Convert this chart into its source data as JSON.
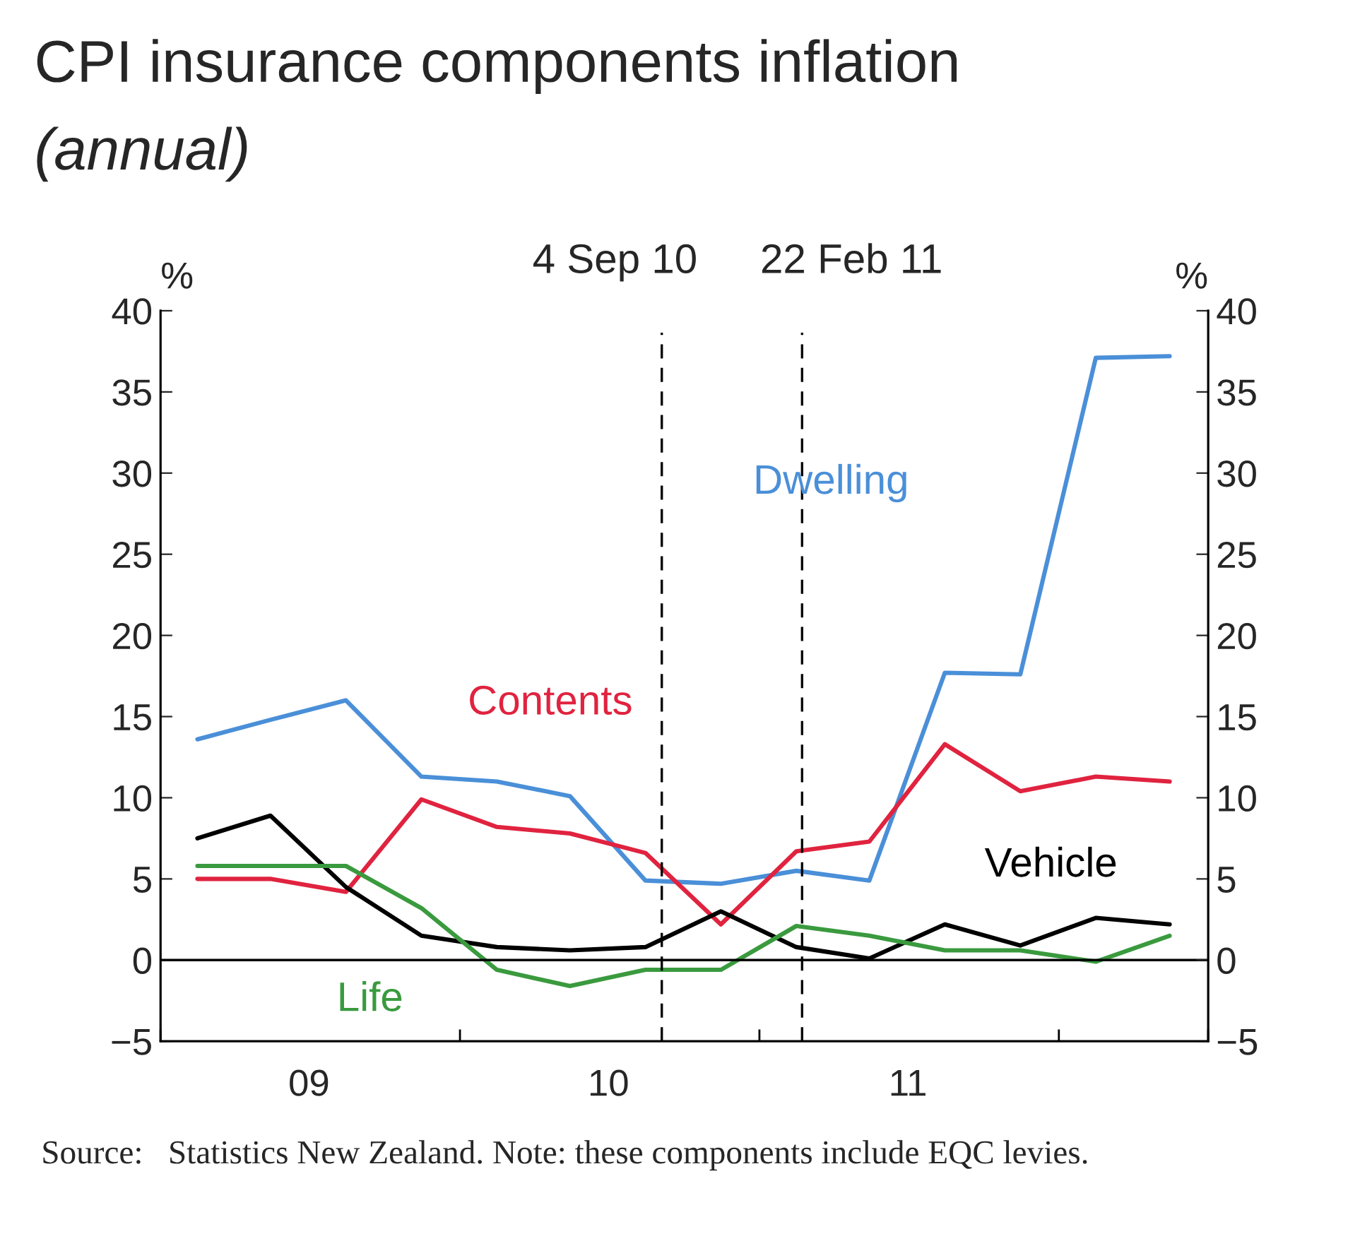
{
  "chart_data": {
    "type": "line",
    "title": "CPI insurance components inflation",
    "subtitle": "(annual)",
    "ylabel": "%",
    "y2label": "%",
    "x": [
      "2009-02-15",
      "2009-05-15",
      "2009-08-15",
      "2009-11-15",
      "2010-02-15",
      "2010-05-15",
      "2010-08-15",
      "2010-11-15",
      "2011-02-15",
      "2011-05-15",
      "2011-08-15",
      "2011-11-15",
      "2012-02-15",
      "2012-05-15"
    ],
    "series": [
      {
        "name": "Dwelling",
        "color": "#4a8fd8",
        "values": [
          13.6,
          14.8,
          16.0,
          11.3,
          11.0,
          10.1,
          4.9,
          4.7,
          5.5,
          4.9,
          17.7,
          17.6,
          37.1,
          37.2
        ]
      },
      {
        "name": "Contents",
        "color": "#e0233f",
        "values": [
          5.0,
          5.0,
          4.2,
          9.9,
          8.2,
          7.8,
          6.6,
          2.2,
          6.7,
          7.3,
          13.3,
          10.4,
          11.3,
          11.0
        ]
      },
      {
        "name": "Vehicle",
        "color": "#000000",
        "values": [
          7.5,
          8.9,
          4.5,
          1.5,
          0.8,
          0.6,
          0.8,
          3.0,
          0.8,
          0.1,
          2.2,
          0.9,
          2.6,
          2.2
        ]
      },
      {
        "name": "Life",
        "color": "#3a9a3e",
        "values": [
          5.8,
          5.8,
          5.8,
          3.2,
          -0.6,
          -1.6,
          -0.6,
          -0.6,
          2.1,
          1.5,
          0.6,
          0.6,
          -0.1,
          1.5
        ]
      }
    ],
    "xlim": [
      "2009-01-01",
      "2012-07-01"
    ],
    "xticks": [
      {
        "value": "2009-01-01",
        "label": null
      },
      {
        "value": "2009-07-01",
        "label": "09"
      },
      {
        "value": "2010-01-01",
        "label": null
      },
      {
        "value": "2010-07-01",
        "label": "10"
      },
      {
        "value": "2011-01-01",
        "label": null
      },
      {
        "value": "2011-07-01",
        "label": "11"
      },
      {
        "value": "2012-01-01",
        "label": null
      },
      {
        "value": "2012-07-01",
        "label": null
      }
    ],
    "ylim": [
      -5,
      40
    ],
    "yticks": [
      {
        "value": -5,
        "label": "−5"
      },
      0,
      5,
      10,
      15,
      20,
      25,
      30,
      35,
      40
    ],
    "y2lim": [
      -5,
      40
    ],
    "y2ticks": [
      {
        "value": -5,
        "label": "−5"
      },
      0,
      5,
      10,
      15,
      20,
      25,
      30,
      35,
      40
    ],
    "ref_lines": [
      {
        "axis": "y",
        "value": 0,
        "color": "#000000",
        "line_style": "solid"
      },
      {
        "axis": "x",
        "value": "2010-09-04",
        "label": "4 Sep 10",
        "color": "#000000",
        "line_style": "dashed"
      },
      {
        "axis": "x",
        "value": "2011-02-22",
        "label": "22 Feb 11",
        "color": "#000000",
        "line_style": "dashed"
      }
    ],
    "line_style": "solid",
    "marker": "none",
    "grid": false,
    "annotations": [
      "Source:   Statistics New Zealand. Note: these components include EQC levies."
    ]
  }
}
